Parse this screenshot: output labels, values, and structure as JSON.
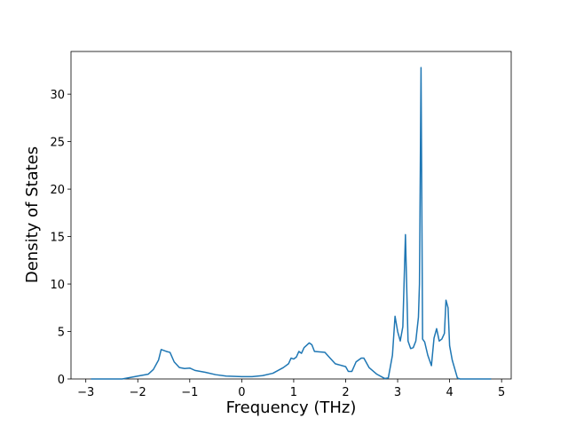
{
  "chart_data": {
    "type": "line",
    "x_label": "Frequency (THz)",
    "y_label": "Density of States",
    "xlim": [
      -3.285,
      5.185
    ],
    "ylim": [
      0,
      34.5
    ],
    "xticks": [
      {
        "value": -3,
        "label": "−3"
      },
      {
        "value": -2,
        "label": "−2"
      },
      {
        "value": -1,
        "label": "−1"
      },
      0,
      1,
      2,
      3,
      4,
      5
    ],
    "yticks": [
      0,
      5,
      10,
      15,
      20,
      25,
      30
    ],
    "grid": false,
    "x": [
      -2.9,
      -2.3,
      -2.0,
      -1.8,
      -1.7,
      -1.6,
      -1.55,
      -1.45,
      -1.38,
      -1.3,
      -1.2,
      -1.1,
      -1.0,
      -0.9,
      -0.7,
      -0.5,
      -0.3,
      0,
      0.2,
      0.4,
      0.6,
      0.8,
      0.9,
      0.95,
      1.0,
      1.05,
      1.1,
      1.15,
      1.2,
      1.3,
      1.35,
      1.4,
      1.6,
      1.7,
      1.8,
      2.0,
      2.05,
      2.12,
      2.2,
      2.3,
      2.35,
      2.45,
      2.6,
      2.75,
      2.82,
      2.9,
      2.95,
      3.0,
      3.05,
      3.1,
      3.15,
      3.2,
      3.25,
      3.3,
      3.35,
      3.4,
      3.42,
      3.45,
      3.48,
      3.52,
      3.58,
      3.65,
      3.7,
      3.75,
      3.8,
      3.85,
      3.9,
      3.93,
      3.97,
      4.0,
      4.05,
      4.15,
      4.2,
      4.8
    ],
    "series": [
      {
        "name": "DOS",
        "color": "#1f77b4",
        "values": [
          0,
          0,
          0.3,
          0.5,
          1.0,
          2.0,
          3.1,
          2.9,
          2.8,
          1.8,
          1.2,
          1.1,
          1.15,
          0.9,
          0.7,
          0.45,
          0.3,
          0.25,
          0.25,
          0.35,
          0.6,
          1.2,
          1.6,
          2.2,
          2.1,
          2.3,
          2.9,
          2.7,
          3.3,
          3.8,
          3.6,
          2.9,
          2.8,
          2.2,
          1.6,
          1.3,
          0.8,
          0.8,
          1.8,
          2.2,
          2.2,
          1.2,
          0.5,
          0.05,
          0.1,
          2.5,
          6.6,
          5.0,
          4.0,
          5.5,
          15.2,
          4.0,
          3.2,
          3.3,
          4.0,
          6.5,
          10,
          32.8,
          4.2,
          3.9,
          2.5,
          1.4,
          4.3,
          5.3,
          4.0,
          4.2,
          4.8,
          8.3,
          7.5,
          3.5,
          2.0,
          0.1,
          0,
          0
        ]
      }
    ]
  }
}
